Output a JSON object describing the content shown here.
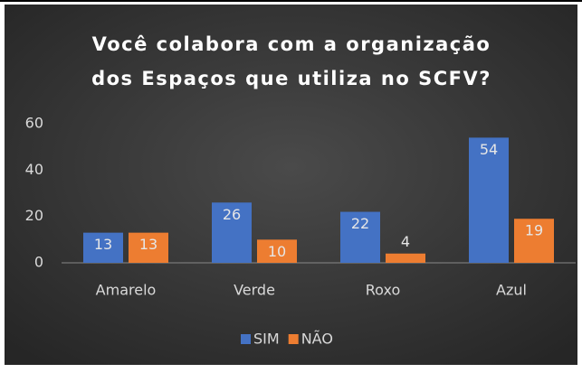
{
  "chart_data": {
    "type": "bar",
    "title": [
      "Você colabora com a organização",
      "dos Espaços que utiliza no SCFV?"
    ],
    "categories": [
      "Amarelo",
      "Verde",
      "Roxo",
      "Azul"
    ],
    "series": [
      {
        "name": "SIM",
        "color": "#4472c4",
        "values": [
          13,
          26,
          22,
          54
        ]
      },
      {
        "name": "NÃO",
        "color": "#ed7d31",
        "values": [
          13,
          10,
          4,
          19
        ]
      }
    ],
    "ylim": [
      0,
      60
    ],
    "yticks": [
      0,
      20,
      40,
      60
    ],
    "grid": false,
    "legend": "bottom"
  }
}
